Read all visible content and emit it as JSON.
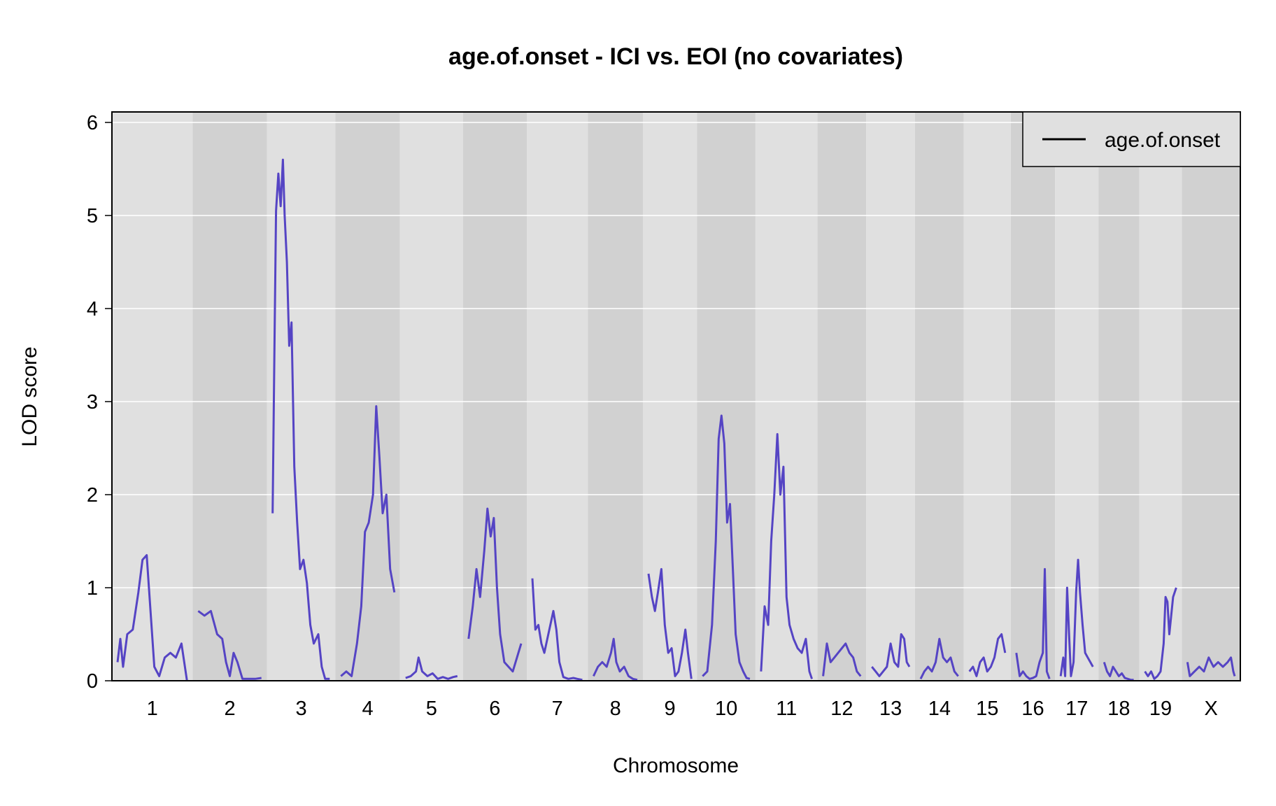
{
  "chart_data": {
    "type": "line",
    "title": "age.of.onset - ICI vs. EOI (no covariates)",
    "xlabel": "Chromosome",
    "ylabel": "LOD score",
    "ylim": [
      0,
      6
    ],
    "yticks": [
      0,
      1,
      2,
      3,
      4,
      5,
      6
    ],
    "grid": "horizontal",
    "legend": {
      "position": "top-right",
      "entries": [
        "age.of.onset"
      ]
    },
    "colors": {
      "line": "#5544c4",
      "band_light": "#e0e0e0",
      "band_dark": "#d1d1d1",
      "grid": "#ffffff",
      "frame": "#000000"
    },
    "chromosomes": [
      {
        "label": "1",
        "peaks": [
          [
            0,
            0.2
          ],
          [
            0.04,
            0.45
          ],
          [
            0.08,
            0.15
          ],
          [
            0.14,
            0.5
          ],
          [
            0.22,
            0.55
          ],
          [
            0.3,
            0.95
          ],
          [
            0.36,
            1.3
          ],
          [
            0.42,
            1.35
          ],
          [
            0.47,
            0.8
          ],
          [
            0.53,
            0.15
          ],
          [
            0.6,
            0.05
          ],
          [
            0.68,
            0.25
          ],
          [
            0.76,
            0.3
          ],
          [
            0.84,
            0.25
          ],
          [
            0.92,
            0.4
          ],
          [
            1,
            0.0
          ]
        ]
      },
      {
        "label": "2",
        "peaks": [
          [
            0,
            0.75
          ],
          [
            0.1,
            0.7
          ],
          [
            0.2,
            0.75
          ],
          [
            0.3,
            0.5
          ],
          [
            0.38,
            0.45
          ],
          [
            0.44,
            0.2
          ],
          [
            0.5,
            0.05
          ],
          [
            0.56,
            0.3
          ],
          [
            0.62,
            0.2
          ],
          [
            0.7,
            0.02
          ],
          [
            0.8,
            0.02
          ],
          [
            0.9,
            0.02
          ],
          [
            1,
            0.03
          ]
        ]
      },
      {
        "label": "3",
        "peaks": [
          [
            0,
            1.8
          ],
          [
            0.03,
            3.5
          ],
          [
            0.06,
            5.05
          ],
          [
            0.1,
            5.45
          ],
          [
            0.14,
            5.1
          ],
          [
            0.18,
            5.6
          ],
          [
            0.21,
            5.0
          ],
          [
            0.25,
            4.5
          ],
          [
            0.29,
            3.6
          ],
          [
            0.33,
            3.85
          ],
          [
            0.38,
            2.3
          ],
          [
            0.43,
            1.7
          ],
          [
            0.48,
            1.2
          ],
          [
            0.54,
            1.3
          ],
          [
            0.6,
            1.05
          ],
          [
            0.66,
            0.6
          ],
          [
            0.72,
            0.4
          ],
          [
            0.8,
            0.5
          ],
          [
            0.86,
            0.15
          ],
          [
            0.92,
            0.02
          ],
          [
            1,
            0.02
          ]
        ]
      },
      {
        "label": "4",
        "peaks": [
          [
            0,
            0.05
          ],
          [
            0.1,
            0.1
          ],
          [
            0.2,
            0.05
          ],
          [
            0.3,
            0.4
          ],
          [
            0.38,
            0.8
          ],
          [
            0.45,
            1.6
          ],
          [
            0.52,
            1.7
          ],
          [
            0.6,
            2.0
          ],
          [
            0.66,
            2.95
          ],
          [
            0.72,
            2.4
          ],
          [
            0.78,
            1.8
          ],
          [
            0.85,
            2.0
          ],
          [
            0.92,
            1.2
          ],
          [
            1,
            0.95
          ]
        ]
      },
      {
        "label": "5",
        "peaks": [
          [
            0,
            0.03
          ],
          [
            0.1,
            0.05
          ],
          [
            0.2,
            0.1
          ],
          [
            0.25,
            0.25
          ],
          [
            0.32,
            0.1
          ],
          [
            0.42,
            0.05
          ],
          [
            0.52,
            0.08
          ],
          [
            0.62,
            0.02
          ],
          [
            0.72,
            0.04
          ],
          [
            0.82,
            0.02
          ],
          [
            0.92,
            0.04
          ],
          [
            1,
            0.05
          ]
        ]
      },
      {
        "label": "6",
        "peaks": [
          [
            0,
            0.45
          ],
          [
            0.08,
            0.8
          ],
          [
            0.15,
            1.2
          ],
          [
            0.22,
            0.9
          ],
          [
            0.3,
            1.4
          ],
          [
            0.36,
            1.85
          ],
          [
            0.42,
            1.55
          ],
          [
            0.48,
            1.75
          ],
          [
            0.54,
            1.0
          ],
          [
            0.6,
            0.5
          ],
          [
            0.68,
            0.2
          ],
          [
            0.76,
            0.15
          ],
          [
            0.84,
            0.1
          ],
          [
            0.92,
            0.25
          ],
          [
            1,
            0.4
          ]
        ]
      },
      {
        "label": "7",
        "peaks": [
          [
            0,
            1.1
          ],
          [
            0.06,
            0.55
          ],
          [
            0.12,
            0.6
          ],
          [
            0.18,
            0.4
          ],
          [
            0.24,
            0.3
          ],
          [
            0.3,
            0.45
          ],
          [
            0.36,
            0.6
          ],
          [
            0.42,
            0.75
          ],
          [
            0.48,
            0.55
          ],
          [
            0.54,
            0.2
          ],
          [
            0.62,
            0.04
          ],
          [
            0.72,
            0.02
          ],
          [
            0.82,
            0.03
          ],
          [
            0.9,
            0.02
          ],
          [
            1,
            0.01
          ]
        ]
      },
      {
        "label": "8",
        "peaks": [
          [
            0,
            0.05
          ],
          [
            0.1,
            0.15
          ],
          [
            0.2,
            0.2
          ],
          [
            0.3,
            0.15
          ],
          [
            0.4,
            0.3
          ],
          [
            0.46,
            0.45
          ],
          [
            0.52,
            0.2
          ],
          [
            0.6,
            0.1
          ],
          [
            0.7,
            0.15
          ],
          [
            0.8,
            0.05
          ],
          [
            0.9,
            0.02
          ],
          [
            1,
            0.01
          ]
        ]
      },
      {
        "label": "9",
        "peaks": [
          [
            0,
            1.15
          ],
          [
            0.08,
            0.9
          ],
          [
            0.15,
            0.75
          ],
          [
            0.22,
            0.95
          ],
          [
            0.3,
            1.2
          ],
          [
            0.38,
            0.6
          ],
          [
            0.46,
            0.3
          ],
          [
            0.54,
            0.35
          ],
          [
            0.62,
            0.05
          ],
          [
            0.7,
            0.1
          ],
          [
            0.78,
            0.3
          ],
          [
            0.86,
            0.55
          ],
          [
            0.92,
            0.3
          ],
          [
            1,
            0.02
          ]
        ]
      },
      {
        "label": "10",
        "peaks": [
          [
            0,
            0.05
          ],
          [
            0.1,
            0.1
          ],
          [
            0.2,
            0.6
          ],
          [
            0.28,
            1.5
          ],
          [
            0.34,
            2.6
          ],
          [
            0.4,
            2.85
          ],
          [
            0.46,
            2.55
          ],
          [
            0.52,
            1.7
          ],
          [
            0.58,
            1.9
          ],
          [
            0.64,
            1.2
          ],
          [
            0.7,
            0.5
          ],
          [
            0.78,
            0.2
          ],
          [
            0.86,
            0.1
          ],
          [
            0.93,
            0.03
          ],
          [
            1,
            0.02
          ]
        ]
      },
      {
        "label": "11",
        "peaks": [
          [
            0,
            0.1
          ],
          [
            0.07,
            0.8
          ],
          [
            0.14,
            0.6
          ],
          [
            0.2,
            1.5
          ],
          [
            0.26,
            2.0
          ],
          [
            0.32,
            2.65
          ],
          [
            0.38,
            2.0
          ],
          [
            0.44,
            2.3
          ],
          [
            0.5,
            0.9
          ],
          [
            0.56,
            0.6
          ],
          [
            0.64,
            0.45
          ],
          [
            0.72,
            0.35
          ],
          [
            0.8,
            0.3
          ],
          [
            0.88,
            0.45
          ],
          [
            0.95,
            0.1
          ],
          [
            1,
            0.02
          ]
        ]
      },
      {
        "label": "12",
        "peaks": [
          [
            0,
            0.05
          ],
          [
            0.1,
            0.4
          ],
          [
            0.2,
            0.2
          ],
          [
            0.3,
            0.25
          ],
          [
            0.4,
            0.3
          ],
          [
            0.5,
            0.35
          ],
          [
            0.6,
            0.4
          ],
          [
            0.7,
            0.3
          ],
          [
            0.8,
            0.25
          ],
          [
            0.9,
            0.1
          ],
          [
            1,
            0.05
          ]
        ]
      },
      {
        "label": "13",
        "peaks": [
          [
            0,
            0.15
          ],
          [
            0.1,
            0.1
          ],
          [
            0.2,
            0.05
          ],
          [
            0.3,
            0.1
          ],
          [
            0.4,
            0.15
          ],
          [
            0.5,
            0.4
          ],
          [
            0.6,
            0.2
          ],
          [
            0.7,
            0.15
          ],
          [
            0.78,
            0.5
          ],
          [
            0.86,
            0.45
          ],
          [
            0.93,
            0.2
          ],
          [
            1,
            0.15
          ]
        ]
      },
      {
        "label": "14",
        "peaks": [
          [
            0,
            0.02
          ],
          [
            0.1,
            0.1
          ],
          [
            0.2,
            0.15
          ],
          [
            0.3,
            0.1
          ],
          [
            0.4,
            0.2
          ],
          [
            0.5,
            0.45
          ],
          [
            0.6,
            0.25
          ],
          [
            0.7,
            0.2
          ],
          [
            0.8,
            0.25
          ],
          [
            0.9,
            0.1
          ],
          [
            1,
            0.05
          ]
        ]
      },
      {
        "label": "15",
        "peaks": [
          [
            0,
            0.1
          ],
          [
            0.1,
            0.15
          ],
          [
            0.2,
            0.05
          ],
          [
            0.3,
            0.2
          ],
          [
            0.4,
            0.25
          ],
          [
            0.5,
            0.1
          ],
          [
            0.6,
            0.15
          ],
          [
            0.7,
            0.25
          ],
          [
            0.8,
            0.45
          ],
          [
            0.9,
            0.5
          ],
          [
            1,
            0.3
          ]
        ]
      },
      {
        "label": "16",
        "peaks": [
          [
            0,
            0.3
          ],
          [
            0.1,
            0.05
          ],
          [
            0.2,
            0.1
          ],
          [
            0.3,
            0.05
          ],
          [
            0.4,
            0.02
          ],
          [
            0.5,
            0.03
          ],
          [
            0.6,
            0.05
          ],
          [
            0.7,
            0.2
          ],
          [
            0.8,
            0.3
          ],
          [
            0.86,
            1.2
          ],
          [
            0.92,
            0.1
          ],
          [
            1,
            0.02
          ]
        ]
      },
      {
        "label": "17",
        "peaks": [
          [
            0,
            0.05
          ],
          [
            0.08,
            0.25
          ],
          [
            0.14,
            0.05
          ],
          [
            0.2,
            1.0
          ],
          [
            0.26,
            0.5
          ],
          [
            0.32,
            0.05
          ],
          [
            0.4,
            0.2
          ],
          [
            0.48,
            0.95
          ],
          [
            0.54,
            1.3
          ],
          [
            0.6,
            0.95
          ],
          [
            0.68,
            0.6
          ],
          [
            0.76,
            0.3
          ],
          [
            0.84,
            0.25
          ],
          [
            0.92,
            0.2
          ],
          [
            1,
            0.15
          ]
        ]
      },
      {
        "label": "18",
        "peaks": [
          [
            0,
            0.2
          ],
          [
            0.1,
            0.1
          ],
          [
            0.2,
            0.05
          ],
          [
            0.3,
            0.15
          ],
          [
            0.4,
            0.1
          ],
          [
            0.5,
            0.05
          ],
          [
            0.6,
            0.08
          ],
          [
            0.7,
            0.03
          ],
          [
            0.8,
            0.02
          ],
          [
            0.9,
            0.01
          ],
          [
            1,
            0.01
          ]
        ]
      },
      {
        "label": "19",
        "peaks": [
          [
            0,
            0.1
          ],
          [
            0.1,
            0.05
          ],
          [
            0.2,
            0.1
          ],
          [
            0.3,
            0.02
          ],
          [
            0.4,
            0.05
          ],
          [
            0.5,
            0.1
          ],
          [
            0.6,
            0.4
          ],
          [
            0.66,
            0.9
          ],
          [
            0.72,
            0.85
          ],
          [
            0.78,
            0.5
          ],
          [
            0.84,
            0.7
          ],
          [
            0.9,
            0.9
          ],
          [
            1,
            1.0
          ]
        ]
      },
      {
        "label": "X",
        "peaks": [
          [
            0,
            0.2
          ],
          [
            0.05,
            0.05
          ],
          [
            0.15,
            0.1
          ],
          [
            0.25,
            0.15
          ],
          [
            0.35,
            0.1
          ],
          [
            0.45,
            0.25
          ],
          [
            0.55,
            0.15
          ],
          [
            0.65,
            0.2
          ],
          [
            0.75,
            0.15
          ],
          [
            0.85,
            0.2
          ],
          [
            0.92,
            0.25
          ],
          [
            0.97,
            0.1
          ],
          [
            1,
            0.05
          ]
        ]
      }
    ]
  }
}
